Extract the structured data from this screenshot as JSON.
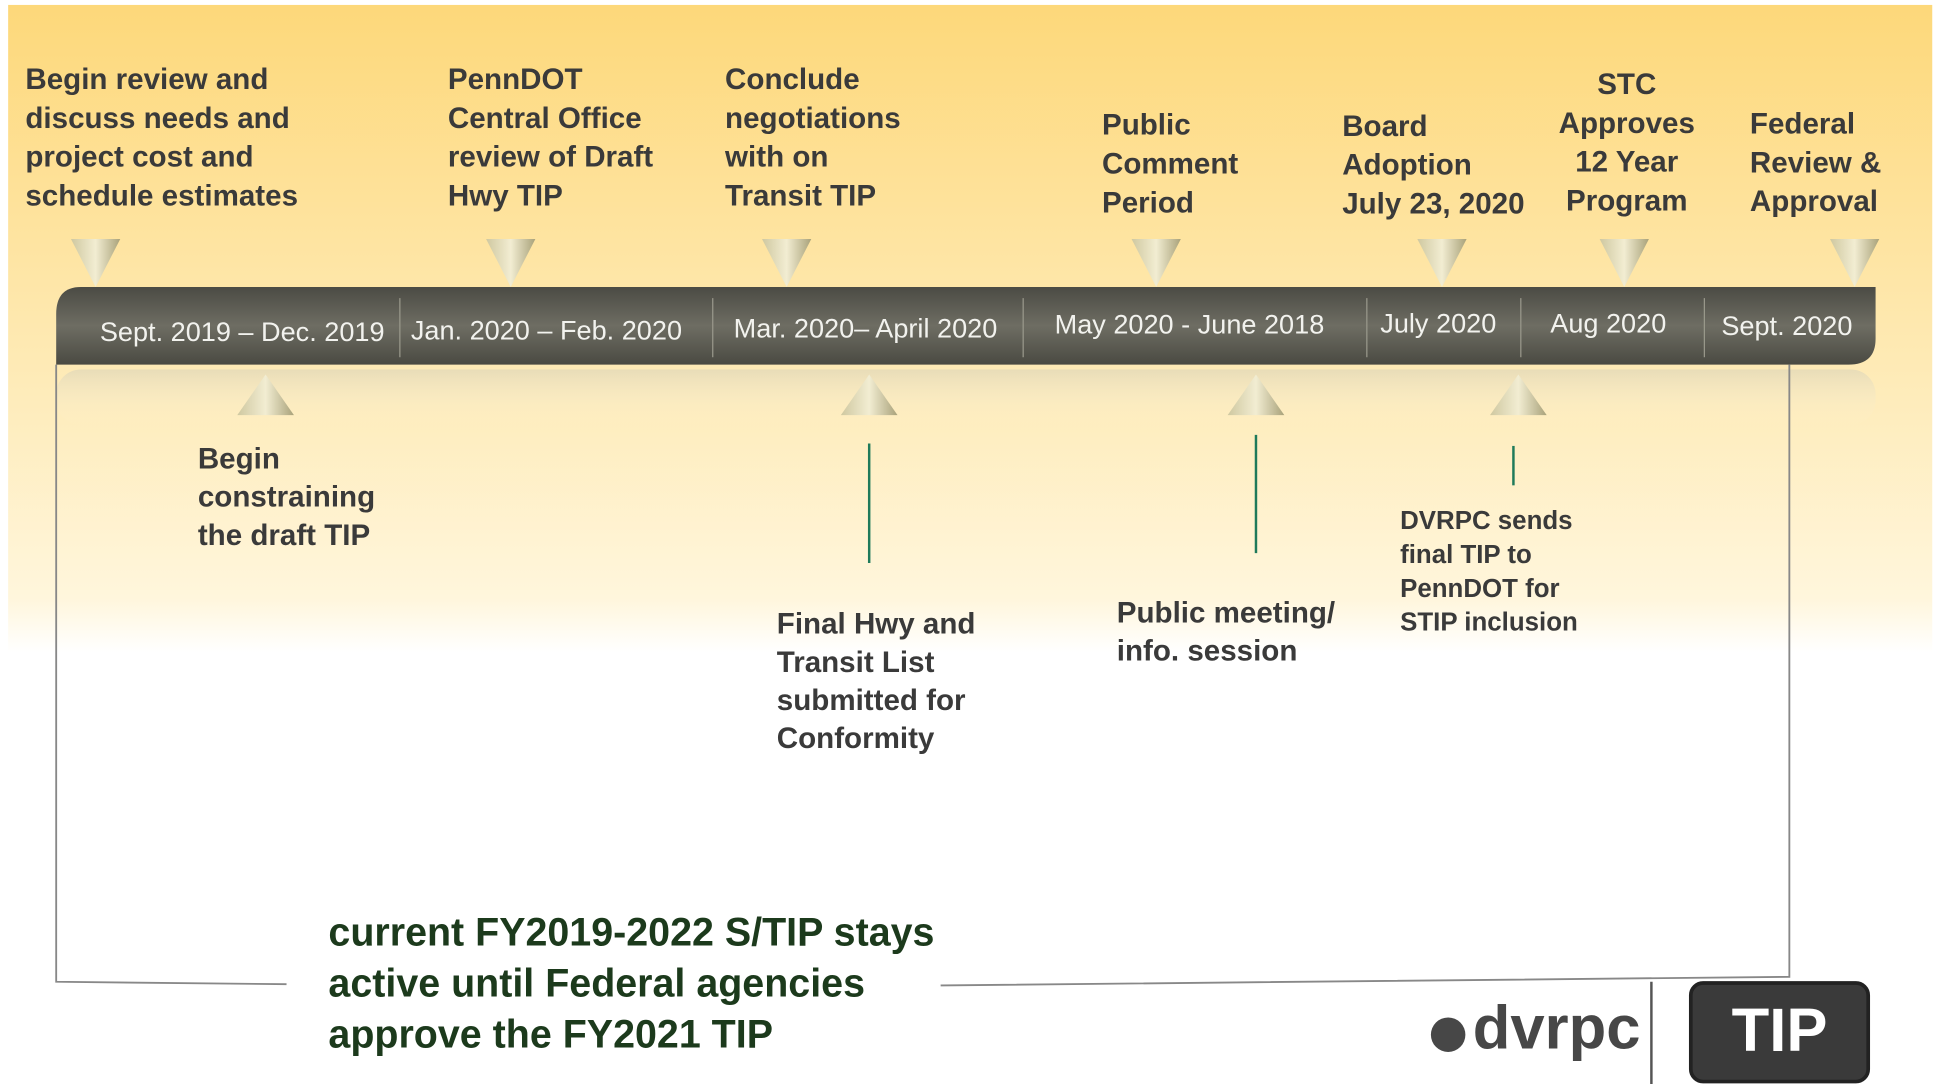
{
  "top_events": [
    {
      "lines": [
        "Begin review and",
        "discuss needs and",
        "project cost and",
        "schedule estimates"
      ]
    },
    {
      "lines": [
        "PennDOT",
        "Central Office",
        "review of Draft",
        "Hwy TIP"
      ]
    },
    {
      "lines": [
        "Conclude",
        "negotiations",
        "with on",
        "Transit TIP"
      ]
    },
    {
      "lines": [
        "Public",
        "Comment",
        "Period"
      ]
    },
    {
      "lines": [
        "Board",
        "Adoption",
        "July 23, 2020"
      ]
    },
    {
      "lines": [
        "STC",
        "Approves",
        "12 Year",
        "Program"
      ]
    },
    {
      "lines": [
        "Federal",
        "Review &",
        "Approval"
      ]
    }
  ],
  "periods": [
    "Sept. 2019 – Dec. 2019",
    "Jan. 2020 – Feb. 2020",
    "Mar. 2020– April 2020",
    "May 2020  -  June 2018",
    "July 2020",
    "Aug 2020",
    "Sept. 2020"
  ],
  "bottom_events": [
    {
      "lines": [
        "Begin",
        "constraining",
        "the draft TIP"
      ]
    },
    {
      "lines": [
        "Final Hwy and",
        "Transit List",
        "submitted for",
        "Conformity"
      ]
    },
    {
      "lines": [
        "Public meeting/",
        "info. session"
      ]
    },
    {
      "lines": [
        "DVRPC sends",
        "final TIP to",
        "PennDOT for",
        "STIP inclusion"
      ]
    }
  ],
  "note": {
    "lines": [
      "current FY2019-2022 S/TIP stays",
      "active until Federal agencies",
      "approve the FY2021 TIP"
    ]
  },
  "logo": {
    "org": "dvrpc",
    "product": "TIP"
  }
}
